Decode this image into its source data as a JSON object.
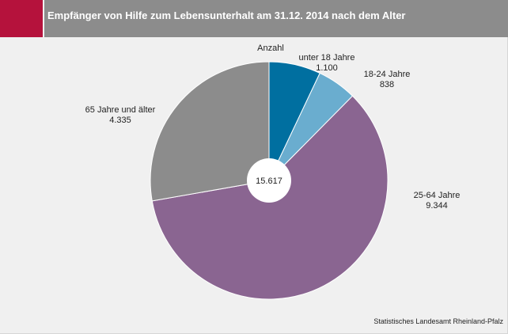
{
  "header": {
    "title": "Empfänger von Hilfe zum Lebensunterhalt am 31.12. 2014 nach dem Alter",
    "accent_color": "#b5123c",
    "bar_color": "#8c8c8c"
  },
  "chart_data": {
    "type": "pie",
    "title": "Empfänger von Hilfe zum Lebensunterhalt am 31.12. 2014 nach dem Alter",
    "subtitle": "Anzahl",
    "categories": [
      "unter 18 Jahre",
      "18-24 Jahre",
      "25-64 Jahre",
      "65 Jahre und älter"
    ],
    "values": [
      1100,
      838,
      9344,
      4335
    ],
    "value_labels": [
      "1.100",
      "838",
      "9.344",
      "4.335"
    ],
    "colors": [
      "#006fa0",
      "#6aadcf",
      "#8a6591",
      "#8c8c8c"
    ],
    "total": 15617,
    "total_label": "15.617",
    "legend": "none"
  },
  "footer": {
    "source": "Statistisches Landesamt Rheinland-Pfalz"
  }
}
